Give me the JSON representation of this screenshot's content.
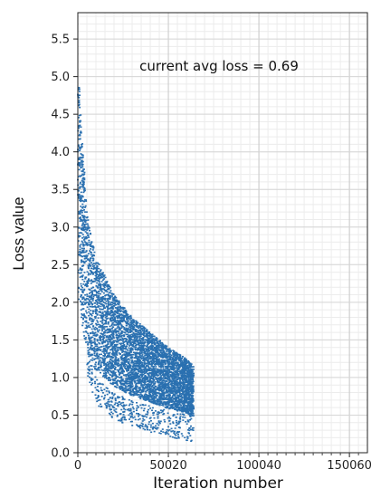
{
  "chart_data": {
    "type": "scatter",
    "title": "",
    "xlabel": "Iteration number",
    "ylabel": "Loss value",
    "annotation": "current avg loss = 0.69",
    "xlim": [
      0,
      160000
    ],
    "ylim": [
      0,
      5.85
    ],
    "x_ticks": [
      0,
      50020,
      100040,
      150060
    ],
    "x_tick_labels": [
      "0",
      "50020",
      "100040",
      "150060"
    ],
    "y_ticks": [
      0.0,
      0.5,
      1.0,
      1.5,
      2.0,
      2.5,
      3.0,
      3.5,
      4.0,
      4.5,
      5.0,
      5.5
    ],
    "y_tick_labels": [
      "0.0",
      "0.5",
      "1.0",
      "1.5",
      "2.0",
      "2.5",
      "3.0",
      "3.5",
      "4.0",
      "4.5",
      "5.0",
      "5.5"
    ],
    "grid": true,
    "series": [
      {
        "color": "#2a70b0",
        "description_points": [
          {
            "x": 0,
            "y": 5.0
          },
          {
            "x": 2000,
            "y": 4.2
          },
          {
            "x": 5000,
            "y": 3.2
          },
          {
            "x": 10000,
            "y": 2.6
          },
          {
            "x": 20000,
            "y": 2.1
          },
          {
            "x": 30000,
            "y": 1.8
          },
          {
            "x": 40000,
            "y": 1.6
          },
          {
            "x": 50000,
            "y": 1.4
          },
          {
            "x": 60000,
            "y": 1.25
          },
          {
            "x": 64000,
            "y": 1.15
          }
        ],
        "lower_band_points": [
          {
            "x": 5000,
            "y": 1.15
          },
          {
            "x": 10000,
            "y": 0.75
          },
          {
            "x": 20000,
            "y": 0.55
          },
          {
            "x": 30000,
            "y": 0.45
          },
          {
            "x": 40000,
            "y": 0.38
          },
          {
            "x": 50000,
            "y": 0.32
          },
          {
            "x": 60000,
            "y": 0.27
          },
          {
            "x": 64000,
            "y": 0.25
          }
        ],
        "final_iteration": 64000
      }
    ]
  }
}
